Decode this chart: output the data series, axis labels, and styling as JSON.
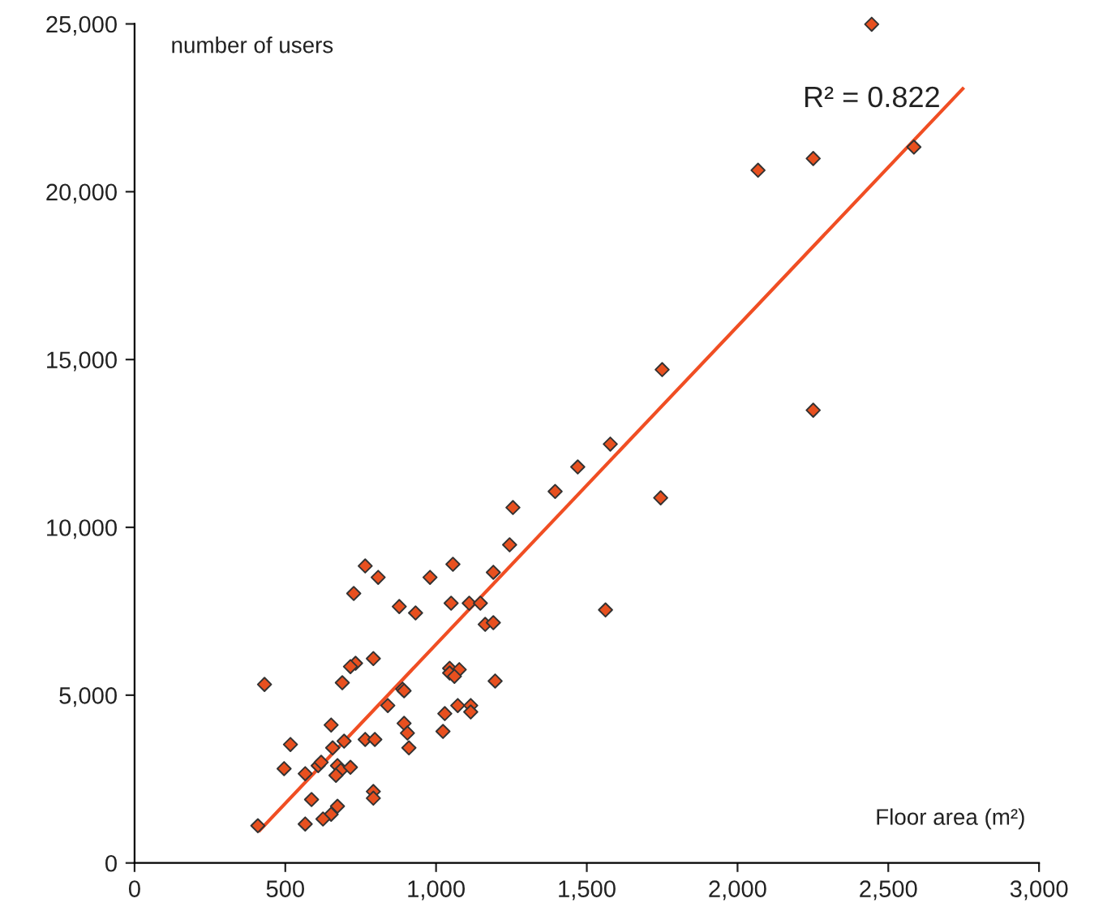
{
  "chart_data": {
    "type": "scatter",
    "xlabel": "Floor area (m²)",
    "ylabel": "number of users",
    "grid": false,
    "legend": false,
    "xlim": [
      0,
      3000
    ],
    "xticks": [
      0,
      500,
      {
        "value": 1000,
        "label": "1,000"
      },
      {
        "value": 1500,
        "label": "1,500"
      },
      {
        "value": 2000,
        "label": "2,000"
      },
      {
        "value": 2500,
        "label": "2,500"
      },
      {
        "value": 3000,
        "label": "3,000"
      }
    ],
    "ylim": [
      0,
      25000
    ],
    "yticks": [
      0,
      {
        "value": 5000,
        "label": "5,000"
      },
      {
        "value": 10000,
        "label": "10,000"
      },
      {
        "value": 15000,
        "label": "15,000"
      },
      {
        "value": 20000,
        "label": "20,000"
      },
      {
        "value": 25000,
        "label": "25,000"
      }
    ],
    "annotations": [
      "R² = 0.822"
    ],
    "series": [
      {
        "marker": "diamond",
        "color": "#e8501f",
        "x": [
          1244,
          765,
          808,
          1056,
          980,
          1190,
          727,
          878,
          932,
          1050,
          1110,
          1147,
          1163,
          1190,
          1562,
          792,
          733,
          716,
          431,
          689,
          1045,
          1077,
          1045,
          1061,
          1196,
          889,
          894,
          840,
          1072,
          1115,
          1115,
          1029,
          652,
          894,
          905,
          517,
          657,
          695,
          765,
          797,
          910,
          1023,
          496,
          566,
          609,
          619,
          673,
          684,
          716,
          668,
          587,
          792,
          792,
          673,
          652,
          625,
          566,
          409,
          2445,
          2068,
          2251,
          2585,
          1750,
          2251,
          1578,
          1745,
          1255,
          1395,
          1470
        ],
        "values": [
          9480,
          8850,
          8510,
          8900,
          8510,
          8660,
          8030,
          7640,
          7450,
          7740,
          7740,
          7740,
          7110,
          7160,
          7540,
          6090,
          5950,
          5850,
          5320,
          5370,
          5800,
          5760,
          5660,
          5560,
          5420,
          5180,
          5130,
          4690,
          4690,
          4690,
          4500,
          4450,
          4110,
          4160,
          3870,
          3530,
          3430,
          3630,
          3680,
          3680,
          3430,
          3920,
          2810,
          2660,
          2900,
          3000,
          2900,
          2760,
          2850,
          2610,
          1890,
          2130,
          1930,
          1690,
          1450,
          1310,
          1160,
          1110,
          24990,
          20640,
          20990,
          21330,
          14700,
          13490,
          12480,
          10880,
          10590,
          11070,
          11800
        ]
      },
      {
        "type": "line",
        "color": "#f04e23",
        "x": [
          415,
          2747
        ],
        "values": [
          970,
          23070
        ]
      }
    ]
  }
}
